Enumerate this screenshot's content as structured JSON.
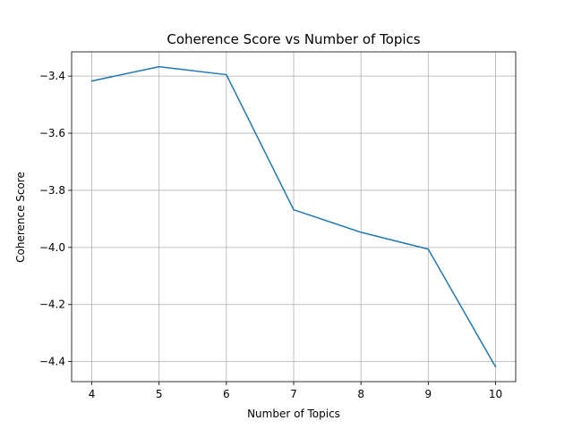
{
  "chart_data": {
    "type": "line",
    "title": "Coherence Score vs  Number of Topics",
    "xlabel": "Number of Topics",
    "ylabel": "Coherence Score",
    "x": [
      4,
      5,
      6,
      7,
      8,
      9,
      10
    ],
    "series": [
      {
        "values": [
          -3.417,
          -3.367,
          -3.395,
          -3.868,
          -3.947,
          -4.006,
          -4.418
        ]
      }
    ],
    "xlim": [
      3.7,
      10.3
    ],
    "ylim": [
      -4.47,
      -3.315
    ],
    "xticks": [
      4,
      5,
      6,
      7,
      8,
      9,
      10
    ],
    "yticks": [
      -4.4,
      -4.2,
      -4.0,
      -3.8,
      -3.6,
      -3.4
    ],
    "ytick_labels": [
      "−4.4",
      "−4.2",
      "−4.0",
      "−3.8",
      "−3.6",
      "−3.4"
    ],
    "grid": true,
    "line_color": "#1f77b4"
  }
}
